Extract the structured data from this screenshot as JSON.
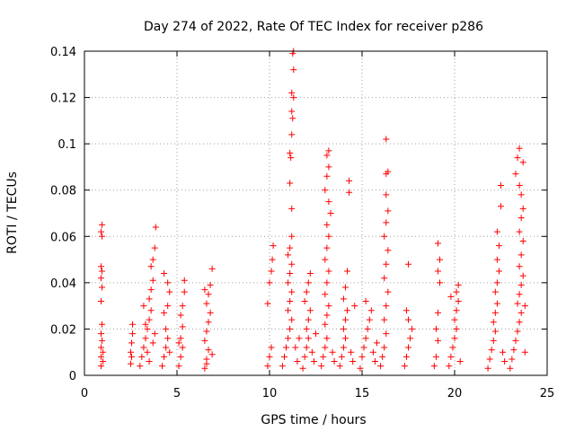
{
  "chart_data": {
    "type": "scatter",
    "title": "Day 274 of 2022, Rate Of TEC Index for receiver p286",
    "xlabel": "GPS time / hours",
    "ylabel": "ROTI / TECUs",
    "xlim": [
      0,
      25
    ],
    "ylim": [
      0,
      0.14
    ],
    "grid": true,
    "marker": "+",
    "color": "#ff0000",
    "x_ticks": [
      0,
      5,
      10,
      15,
      20,
      25
    ],
    "x_tick_labels": [
      "0",
      "5",
      "10",
      "15",
      "20",
      "25"
    ],
    "y_ticks": [
      0,
      0.02,
      0.04,
      0.06,
      0.08,
      0.1,
      0.12,
      0.14
    ],
    "y_tick_labels": [
      "0",
      "0.02",
      "0.04",
      "0.06",
      "0.08",
      "0.1",
      "0.12",
      "0.14"
    ],
    "series": [
      {
        "name": "ROTI",
        "points": [
          [
            0.9,
            0.004
          ],
          [
            0.9,
            0.008
          ],
          [
            0.9,
            0.012
          ],
          [
            0.95,
            0.015
          ],
          [
            0.9,
            0.018
          ],
          [
            0.95,
            0.022
          ],
          [
            0.9,
            0.032
          ],
          [
            0.95,
            0.038
          ],
          [
            0.9,
            0.042
          ],
          [
            0.95,
            0.045
          ],
          [
            0.9,
            0.047
          ],
          [
            0.95,
            0.06
          ],
          [
            0.9,
            0.062
          ],
          [
            0.95,
            0.065
          ],
          [
            1.0,
            0.01
          ],
          [
            1.0,
            0.006
          ],
          [
            2.5,
            0.005
          ],
          [
            2.5,
            0.01
          ],
          [
            2.55,
            0.014
          ],
          [
            2.6,
            0.018
          ],
          [
            2.6,
            0.022
          ],
          [
            2.55,
            0.008
          ],
          [
            3.0,
            0.004
          ],
          [
            3.1,
            0.008
          ],
          [
            3.2,
            0.012
          ],
          [
            3.3,
            0.016
          ],
          [
            3.4,
            0.02
          ],
          [
            3.5,
            0.024
          ],
          [
            3.6,
            0.028
          ],
          [
            3.2,
            0.03
          ],
          [
            3.5,
            0.033
          ],
          [
            3.6,
            0.037
          ],
          [
            3.7,
            0.041
          ],
          [
            3.6,
            0.047
          ],
          [
            3.7,
            0.05
          ],
          [
            3.8,
            0.055
          ],
          [
            3.85,
            0.064
          ],
          [
            3.4,
            0.01
          ],
          [
            3.5,
            0.006
          ],
          [
            3.7,
            0.014
          ],
          [
            3.8,
            0.018
          ],
          [
            3.3,
            0.022
          ],
          [
            4.2,
            0.004
          ],
          [
            4.3,
            0.008
          ],
          [
            4.4,
            0.012
          ],
          [
            4.5,
            0.016
          ],
          [
            4.4,
            0.02
          ],
          [
            4.3,
            0.027
          ],
          [
            4.5,
            0.03
          ],
          [
            4.6,
            0.036
          ],
          [
            4.5,
            0.04
          ],
          [
            4.3,
            0.044
          ],
          [
            4.6,
            0.01
          ],
          [
            5.1,
            0.004
          ],
          [
            5.2,
            0.008
          ],
          [
            5.3,
            0.012
          ],
          [
            5.2,
            0.016
          ],
          [
            5.3,
            0.021
          ],
          [
            5.2,
            0.026
          ],
          [
            5.3,
            0.03
          ],
          [
            5.4,
            0.036
          ],
          [
            5.4,
            0.041
          ],
          [
            5.1,
            0.014
          ],
          [
            6.5,
            0.003
          ],
          [
            6.6,
            0.007
          ],
          [
            6.7,
            0.011
          ],
          [
            6.5,
            0.015
          ],
          [
            6.6,
            0.019
          ],
          [
            6.7,
            0.023
          ],
          [
            6.8,
            0.027
          ],
          [
            6.6,
            0.031
          ],
          [
            6.7,
            0.035
          ],
          [
            6.5,
            0.037
          ],
          [
            6.8,
            0.039
          ],
          [
            6.9,
            0.046
          ],
          [
            6.9,
            0.009
          ],
          [
            6.6,
            0.005
          ],
          [
            9.9,
            0.004
          ],
          [
            10.0,
            0.008
          ],
          [
            10.1,
            0.012
          ],
          [
            9.9,
            0.031
          ],
          [
            10.0,
            0.04
          ],
          [
            10.1,
            0.045
          ],
          [
            10.15,
            0.05
          ],
          [
            10.2,
            0.056
          ],
          [
            10.7,
            0.004
          ],
          [
            10.8,
            0.008
          ],
          [
            10.9,
            0.012
          ],
          [
            11.0,
            0.016
          ],
          [
            11.1,
            0.02
          ],
          [
            11.2,
            0.024
          ],
          [
            11.0,
            0.028
          ],
          [
            11.1,
            0.032
          ],
          [
            11.2,
            0.036
          ],
          [
            11.0,
            0.04
          ],
          [
            11.1,
            0.044
          ],
          [
            11.2,
            0.048
          ],
          [
            11.0,
            0.052
          ],
          [
            11.1,
            0.055
          ],
          [
            11.2,
            0.06
          ],
          [
            11.2,
            0.072
          ],
          [
            11.1,
            0.083
          ],
          [
            11.15,
            0.094
          ],
          [
            11.1,
            0.096
          ],
          [
            11.2,
            0.104
          ],
          [
            11.25,
            0.111
          ],
          [
            11.2,
            0.114
          ],
          [
            11.3,
            0.12
          ],
          [
            11.2,
            0.122
          ],
          [
            11.3,
            0.132
          ],
          [
            11.25,
            0.139
          ],
          [
            11.3,
            0.14
          ],
          [
            11.4,
            0.012
          ],
          [
            11.5,
            0.006
          ],
          [
            11.6,
            0.016
          ],
          [
            11.8,
            0.003
          ],
          [
            11.9,
            0.008
          ],
          [
            12.0,
            0.012
          ],
          [
            12.1,
            0.016
          ],
          [
            12.0,
            0.02
          ],
          [
            12.1,
            0.024
          ],
          [
            12.2,
            0.028
          ],
          [
            11.9,
            0.032
          ],
          [
            12.0,
            0.036
          ],
          [
            12.1,
            0.04
          ],
          [
            12.2,
            0.044
          ],
          [
            12.3,
            0.01
          ],
          [
            12.4,
            0.006
          ],
          [
            12.5,
            0.018
          ],
          [
            12.8,
            0.004
          ],
          [
            12.9,
            0.008
          ],
          [
            13.0,
            0.012
          ],
          [
            13.1,
            0.016
          ],
          [
            13.0,
            0.022
          ],
          [
            13.1,
            0.026
          ],
          [
            13.2,
            0.03
          ],
          [
            13.0,
            0.035
          ],
          [
            13.1,
            0.04
          ],
          [
            13.2,
            0.045
          ],
          [
            13.0,
            0.05
          ],
          [
            13.1,
            0.055
          ],
          [
            13.2,
            0.06
          ],
          [
            13.1,
            0.065
          ],
          [
            13.3,
            0.07
          ],
          [
            13.2,
            0.075
          ],
          [
            13.0,
            0.08
          ],
          [
            13.1,
            0.086
          ],
          [
            13.2,
            0.09
          ],
          [
            13.1,
            0.095
          ],
          [
            13.2,
            0.097
          ],
          [
            13.4,
            0.01
          ],
          [
            13.5,
            0.006
          ],
          [
            13.8,
            0.004
          ],
          [
            13.9,
            0.008
          ],
          [
            14.0,
            0.012
          ],
          [
            14.1,
            0.016
          ],
          [
            14.0,
            0.02
          ],
          [
            14.1,
            0.024
          ],
          [
            14.2,
            0.028
          ],
          [
            14.0,
            0.033
          ],
          [
            14.1,
            0.038
          ],
          [
            14.2,
            0.045
          ],
          [
            14.3,
            0.084
          ],
          [
            14.3,
            0.079
          ],
          [
            14.4,
            0.01
          ],
          [
            14.5,
            0.006
          ],
          [
            14.6,
            0.03
          ],
          [
            14.9,
            0.003
          ],
          [
            15.0,
            0.008
          ],
          [
            15.1,
            0.012
          ],
          [
            15.2,
            0.016
          ],
          [
            15.3,
            0.02
          ],
          [
            15.4,
            0.024
          ],
          [
            15.5,
            0.028
          ],
          [
            15.2,
            0.032
          ],
          [
            15.6,
            0.01
          ],
          [
            15.7,
            0.006
          ],
          [
            15.8,
            0.014
          ],
          [
            16.0,
            0.004
          ],
          [
            16.1,
            0.008
          ],
          [
            16.2,
            0.012
          ],
          [
            16.3,
            0.018
          ],
          [
            16.2,
            0.024
          ],
          [
            16.3,
            0.03
          ],
          [
            16.4,
            0.036
          ],
          [
            16.2,
            0.042
          ],
          [
            16.3,
            0.048
          ],
          [
            16.4,
            0.054
          ],
          [
            16.2,
            0.06
          ],
          [
            16.3,
            0.066
          ],
          [
            16.4,
            0.071
          ],
          [
            16.3,
            0.078
          ],
          [
            16.3,
            0.087
          ],
          [
            16.4,
            0.088
          ],
          [
            16.3,
            0.102
          ],
          [
            17.3,
            0.004
          ],
          [
            17.4,
            0.008
          ],
          [
            17.5,
            0.012
          ],
          [
            17.6,
            0.016
          ],
          [
            17.7,
            0.02
          ],
          [
            17.5,
            0.024
          ],
          [
            17.4,
            0.028
          ],
          [
            17.5,
            0.048
          ],
          [
            18.9,
            0.004
          ],
          [
            19.0,
            0.008
          ],
          [
            19.1,
            0.015
          ],
          [
            19.0,
            0.02
          ],
          [
            19.1,
            0.027
          ],
          [
            19.2,
            0.04
          ],
          [
            19.1,
            0.045
          ],
          [
            19.2,
            0.05
          ],
          [
            19.1,
            0.057
          ],
          [
            19.7,
            0.004
          ],
          [
            19.8,
            0.008
          ],
          [
            19.9,
            0.012
          ],
          [
            20.0,
            0.016
          ],
          [
            20.1,
            0.02
          ],
          [
            20.0,
            0.024
          ],
          [
            20.1,
            0.028
          ],
          [
            20.2,
            0.032
          ],
          [
            20.1,
            0.036
          ],
          [
            20.2,
            0.039
          ],
          [
            19.8,
            0.034
          ],
          [
            20.3,
            0.006
          ],
          [
            21.8,
            0.003
          ],
          [
            21.9,
            0.007
          ],
          [
            22.0,
            0.011
          ],
          [
            22.1,
            0.015
          ],
          [
            22.2,
            0.019
          ],
          [
            22.1,
            0.023
          ],
          [
            22.2,
            0.027
          ],
          [
            22.3,
            0.031
          ],
          [
            22.2,
            0.036
          ],
          [
            22.3,
            0.04
          ],
          [
            22.4,
            0.045
          ],
          [
            22.3,
            0.05
          ],
          [
            22.4,
            0.056
          ],
          [
            22.3,
            0.062
          ],
          [
            22.5,
            0.073
          ],
          [
            22.5,
            0.082
          ],
          [
            22.6,
            0.01
          ],
          [
            22.7,
            0.006
          ],
          [
            23.0,
            0.003
          ],
          [
            23.1,
            0.007
          ],
          [
            23.2,
            0.011
          ],
          [
            23.3,
            0.015
          ],
          [
            23.4,
            0.019
          ],
          [
            23.5,
            0.023
          ],
          [
            23.6,
            0.027
          ],
          [
            23.4,
            0.031
          ],
          [
            23.5,
            0.035
          ],
          [
            23.6,
            0.039
          ],
          [
            23.7,
            0.043
          ],
          [
            23.5,
            0.047
          ],
          [
            23.6,
            0.052
          ],
          [
            23.7,
            0.058
          ],
          [
            23.5,
            0.062
          ],
          [
            23.6,
            0.068
          ],
          [
            23.7,
            0.072
          ],
          [
            23.6,
            0.078
          ],
          [
            23.5,
            0.082
          ],
          [
            23.3,
            0.087
          ],
          [
            23.4,
            0.094
          ],
          [
            23.5,
            0.098
          ],
          [
            23.7,
            0.092
          ],
          [
            23.8,
            0.01
          ],
          [
            23.8,
            0.03
          ]
        ]
      }
    ]
  }
}
